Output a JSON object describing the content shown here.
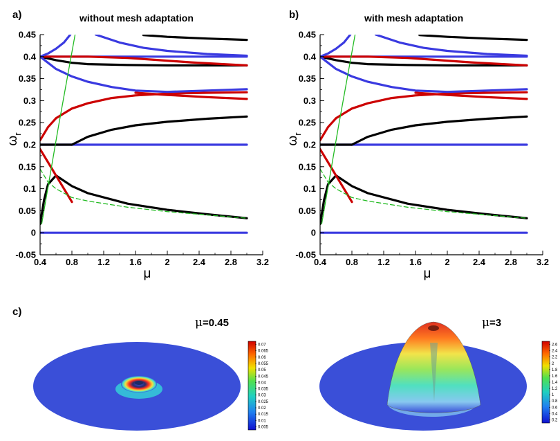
{
  "panel_a": {
    "letter": "a)",
    "title": "without mesh adaptation"
  },
  "panel_b": {
    "letter": "b)",
    "title": "with mesh adaptation"
  },
  "panel_c": {
    "letter": "c)"
  },
  "surf_left": {
    "mu": "μ",
    "eq": "=0.45",
    "colorbar_ticks": [
      "0.07",
      "0.065",
      "0.06",
      "0.055",
      "0.05",
      "0.045",
      "0.04",
      "0.035",
      "0.03",
      "0.025",
      "0.02",
      "0.015",
      "0.01",
      "0.005"
    ]
  },
  "surf_right": {
    "mu": "μ",
    "eq": "=3",
    "colorbar_ticks": [
      "2.6",
      "2.4",
      "2.2",
      "2",
      "1.8",
      "1.6",
      "1.4",
      "1.2",
      "1",
      "0.8",
      "0.6",
      "0.4",
      "0.2"
    ]
  },
  "colors": {
    "black": "#000000",
    "blue": "#3a3ae0",
    "red": "#cc0000",
    "green": "#22bb22",
    "disk": "#3a4fd8"
  },
  "chart_data": [
    {
      "type": "line",
      "title": "without mesh adaptation",
      "xlabel": "μ",
      "ylabel": "ω_r",
      "xlim": [
        0.4,
        3.2
      ],
      "ylim": [
        -0.05,
        0.45
      ],
      "xticks": [
        "0.4",
        "0.8",
        "1.2",
        "1.6",
        "2",
        "2.4",
        "2.8",
        "3.2"
      ],
      "yticks": [
        "-0.05",
        "0",
        "0.05",
        "0.1",
        "0.15",
        "0.2",
        "0.25",
        "0.3",
        "0.35",
        "0.4",
        "0.45"
      ],
      "series": [
        {
          "color": "blue",
          "dash": false,
          "x": [
            0.4,
            3.0
          ],
          "y": [
            0.0,
            0.0
          ]
        },
        {
          "color": "blue",
          "dash": false,
          "x": [
            0.4,
            3.0
          ],
          "y": [
            0.2,
            0.2
          ]
        },
        {
          "color": "blue",
          "dash": false,
          "x": [
            0.4,
            3.0
          ],
          "y": [
            0.4,
            0.4
          ]
        },
        {
          "color": "black",
          "dash": false,
          "x": [
            0.4,
            0.8
          ],
          "y": [
            0.2,
            0.2
          ]
        },
        {
          "color": "black",
          "dash": false,
          "x": [
            0.8,
            1.0,
            1.3,
            1.6,
            2.0,
            2.5,
            3.0
          ],
          "y": [
            0.2,
            0.218,
            0.234,
            0.244,
            0.252,
            0.259,
            0.264
          ]
        },
        {
          "color": "black",
          "dash": false,
          "x": [
            0.4,
            0.45,
            0.5,
            0.6,
            0.8,
            1.0,
            1.5,
            2.0,
            2.5,
            3.0
          ],
          "y": [
            0.02,
            0.075,
            0.11,
            0.13,
            0.106,
            0.09,
            0.066,
            0.052,
            0.042,
            0.033
          ]
        },
        {
          "color": "black",
          "dash": false,
          "x": [
            0.4,
            0.6,
            0.8,
            1.0,
            1.5,
            2.0,
            3.0
          ],
          "y": [
            0.4,
            0.392,
            0.386,
            0.383,
            0.381,
            0.38,
            0.38
          ]
        },
        {
          "color": "black",
          "dash": false,
          "x": [
            1.7,
            2.0,
            2.5,
            3.0
          ],
          "y": [
            0.449,
            0.445,
            0.441,
            0.438
          ]
        },
        {
          "color": "red",
          "dash": false,
          "x": [
            0.4,
            0.5,
            0.6,
            0.8,
            1.0,
            1.3,
            1.6,
            2.0,
            2.5,
            3.0
          ],
          "y": [
            0.21,
            0.24,
            0.26,
            0.282,
            0.294,
            0.306,
            0.312,
            0.316,
            0.318,
            0.319
          ]
        },
        {
          "color": "red",
          "dash": false,
          "x": [
            0.4,
            0.5,
            0.6,
            0.7,
            0.8
          ],
          "y": [
            0.19,
            0.16,
            0.13,
            0.1,
            0.07
          ]
        },
        {
          "color": "red",
          "dash": false,
          "x": [
            0.4,
            1.0,
            1.5,
            1.9,
            2.3,
            3.0
          ],
          "y": [
            0.4,
            0.4,
            0.397,
            0.392,
            0.387,
            0.38
          ]
        },
        {
          "color": "red",
          "dash": false,
          "x": [
            1.6,
            2.0,
            2.5,
            3.0
          ],
          "y": [
            0.318,
            0.313,
            0.308,
            0.304
          ]
        },
        {
          "color": "blue",
          "dash": false,
          "x": [
            0.4,
            0.5,
            0.6,
            0.7,
            0.78
          ],
          "y": [
            0.4,
            0.407,
            0.418,
            0.432,
            0.45
          ]
        },
        {
          "color": "blue",
          "dash": false,
          "x": [
            1.1,
            1.4,
            1.7,
            2.0,
            2.5,
            3.0
          ],
          "y": [
            0.45,
            0.432,
            0.42,
            0.413,
            0.406,
            0.402
          ]
        },
        {
          "color": "blue",
          "dash": false,
          "x": [
            0.4,
            0.6,
            0.8,
            1.0,
            1.3,
            1.6,
            2.0,
            2.5,
            3.0
          ],
          "y": [
            0.4,
            0.372,
            0.355,
            0.343,
            0.331,
            0.323,
            0.32,
            0.323,
            0.326
          ]
        },
        {
          "color": "green",
          "dash": false,
          "x": [
            0.42,
            0.63,
            0.84
          ],
          "y": [
            0.02,
            0.24,
            0.45
          ]
        },
        {
          "color": "green",
          "dash": true,
          "x": [
            0.4,
            0.5,
            0.6,
            0.8,
            1.0,
            1.5,
            2.0,
            3.0
          ],
          "y": [
            0.145,
            0.115,
            0.1,
            0.08,
            0.072,
            0.058,
            0.048,
            0.033
          ]
        }
      ]
    },
    {
      "type": "line",
      "title": "with mesh adaptation",
      "xlabel": "μ",
      "ylabel": "ω_r",
      "xlim": [
        0.4,
        3.2
      ],
      "ylim": [
        -0.05,
        0.45
      ],
      "xticks": [
        "0.4",
        "0.8",
        "1.2",
        "1.6",
        "2",
        "2.4",
        "2.8",
        "3.2"
      ],
      "yticks": [
        "-0.05",
        "0",
        "0.05",
        "0.1",
        "0.15",
        "0.2",
        "0.25",
        "0.3",
        "0.35",
        "0.4",
        "0.45"
      ],
      "series": [
        {
          "color": "blue",
          "dash": false,
          "x": [
            0.4,
            3.0
          ],
          "y": [
            0.0,
            0.0
          ]
        },
        {
          "color": "blue",
          "dash": false,
          "x": [
            0.4,
            3.0
          ],
          "y": [
            0.2,
            0.2
          ]
        },
        {
          "color": "blue",
          "dash": false,
          "x": [
            0.4,
            3.0
          ],
          "y": [
            0.4,
            0.4
          ]
        },
        {
          "color": "black",
          "dash": false,
          "x": [
            0.4,
            0.8
          ],
          "y": [
            0.2,
            0.2
          ]
        },
        {
          "color": "black",
          "dash": false,
          "x": [
            0.8,
            1.0,
            1.3,
            1.6,
            2.0,
            2.5,
            3.0
          ],
          "y": [
            0.2,
            0.218,
            0.234,
            0.244,
            0.252,
            0.259,
            0.264
          ]
        },
        {
          "color": "black",
          "dash": false,
          "x": [
            0.4,
            0.45,
            0.5,
            0.6,
            0.8,
            1.0,
            1.5,
            2.0,
            2.5,
            3.0
          ],
          "y": [
            0.02,
            0.075,
            0.11,
            0.13,
            0.106,
            0.09,
            0.066,
            0.052,
            0.042,
            0.033
          ]
        },
        {
          "color": "black",
          "dash": false,
          "x": [
            0.4,
            0.6,
            0.8,
            1.0,
            1.5,
            2.0,
            3.0
          ],
          "y": [
            0.4,
            0.392,
            0.386,
            0.383,
            0.381,
            0.38,
            0.38
          ]
        },
        {
          "color": "black",
          "dash": false,
          "x": [
            1.65,
            2.0,
            2.5,
            3.0
          ],
          "y": [
            0.449,
            0.445,
            0.441,
            0.438
          ]
        },
        {
          "color": "red",
          "dash": false,
          "x": [
            0.4,
            0.5,
            0.6,
            0.8,
            1.0,
            1.3,
            1.6,
            2.0,
            2.5,
            3.0
          ],
          "y": [
            0.21,
            0.24,
            0.26,
            0.282,
            0.294,
            0.306,
            0.312,
            0.316,
            0.318,
            0.319
          ]
        },
        {
          "color": "red",
          "dash": false,
          "x": [
            0.4,
            0.5,
            0.6,
            0.7,
            0.8
          ],
          "y": [
            0.19,
            0.16,
            0.13,
            0.1,
            0.07
          ]
        },
        {
          "color": "red",
          "dash": false,
          "x": [
            0.4,
            1.0,
            1.5,
            1.9,
            2.3,
            3.0
          ],
          "y": [
            0.4,
            0.4,
            0.397,
            0.392,
            0.387,
            0.38
          ]
        },
        {
          "color": "red",
          "dash": false,
          "x": [
            1.6,
            2.0,
            2.5,
            3.0
          ],
          "y": [
            0.318,
            0.313,
            0.308,
            0.304
          ]
        },
        {
          "color": "blue",
          "dash": false,
          "x": [
            0.4,
            0.5,
            0.6,
            0.7,
            0.78
          ],
          "y": [
            0.4,
            0.407,
            0.418,
            0.432,
            0.45
          ]
        },
        {
          "color": "blue",
          "dash": false,
          "x": [
            1.1,
            1.4,
            1.7,
            2.0,
            2.5,
            3.0
          ],
          "y": [
            0.45,
            0.432,
            0.42,
            0.413,
            0.406,
            0.402
          ]
        },
        {
          "color": "blue",
          "dash": false,
          "x": [
            0.4,
            0.6,
            0.8,
            1.0,
            1.3,
            1.6,
            2.0,
            2.5,
            3.0
          ],
          "y": [
            0.4,
            0.372,
            0.355,
            0.343,
            0.331,
            0.323,
            0.32,
            0.323,
            0.326
          ]
        },
        {
          "color": "green",
          "dash": false,
          "x": [
            0.42,
            0.63,
            0.84
          ],
          "y": [
            0.02,
            0.24,
            0.45
          ]
        },
        {
          "color": "green",
          "dash": true,
          "x": [
            0.4,
            0.5,
            0.6,
            0.8,
            1.0,
            1.5,
            2.0,
            3.0
          ],
          "y": [
            0.145,
            0.115,
            0.1,
            0.08,
            0.072,
            0.058,
            0.048,
            0.033
          ]
        }
      ]
    }
  ]
}
